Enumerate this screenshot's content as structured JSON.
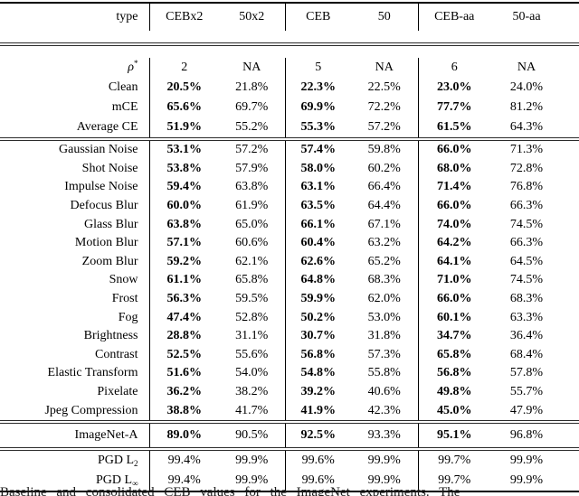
{
  "table": {
    "header": {
      "label": "type",
      "columns": [
        "CEBx2",
        "50x2",
        "CEB",
        "50",
        "CEB-aa",
        "50-aa"
      ]
    },
    "sections": [
      {
        "name": "summary",
        "rows": [
          {
            "label": "ρ",
            "label_sup": "*",
            "label_italic": true,
            "bold_ceb": false,
            "values": [
              "2",
              "NA",
              "5",
              "NA",
              "6",
              "NA"
            ]
          },
          {
            "label": "Clean",
            "bold_ceb": true,
            "values": [
              "20.5%",
              "21.8%",
              "22.3%",
              "22.5%",
              "23.0%",
              "24.0%"
            ]
          },
          {
            "label": "mCE",
            "bold_ceb": true,
            "values": [
              "65.6%",
              "69.7%",
              "69.9%",
              "72.2%",
              "77.7%",
              "81.2%"
            ]
          },
          {
            "label": "Average CE",
            "bold_ceb": true,
            "values": [
              "51.9%",
              "55.2%",
              "55.3%",
              "57.2%",
              "61.5%",
              "64.3%"
            ]
          }
        ]
      },
      {
        "name": "corruptions",
        "rows": [
          {
            "label": "Gaussian Noise",
            "bold_ceb": true,
            "values": [
              "53.1%",
              "57.2%",
              "57.4%",
              "59.8%",
              "66.0%",
              "71.3%"
            ]
          },
          {
            "label": "Shot Noise",
            "bold_ceb": true,
            "values": [
              "53.8%",
              "57.9%",
              "58.0%",
              "60.2%",
              "68.0%",
              "72.8%"
            ]
          },
          {
            "label": "Impulse Noise",
            "bold_ceb": true,
            "values": [
              "59.4%",
              "63.8%",
              "63.1%",
              "66.4%",
              "71.4%",
              "76.8%"
            ]
          },
          {
            "label": "Defocus Blur",
            "bold_ceb": true,
            "values": [
              "60.0%",
              "61.9%",
              "63.5%",
              "64.4%",
              "66.0%",
              "66.3%"
            ]
          },
          {
            "label": "Glass Blur",
            "bold_ceb": true,
            "values": [
              "63.8%",
              "65.0%",
              "66.1%",
              "67.1%",
              "74.0%",
              "74.5%"
            ]
          },
          {
            "label": "Motion Blur",
            "bold_ceb": true,
            "values": [
              "57.1%",
              "60.6%",
              "60.4%",
              "63.2%",
              "64.2%",
              "66.3%"
            ]
          },
          {
            "label": "Zoom Blur",
            "bold_ceb": true,
            "values": [
              "59.2%",
              "62.1%",
              "62.6%",
              "65.2%",
              "64.1%",
              "64.5%"
            ]
          },
          {
            "label": "Snow",
            "bold_ceb": true,
            "values": [
              "61.1%",
              "65.8%",
              "64.8%",
              "68.3%",
              "71.0%",
              "74.5%"
            ]
          },
          {
            "label": "Frost",
            "bold_ceb": true,
            "values": [
              "56.3%",
              "59.5%",
              "59.9%",
              "62.0%",
              "66.0%",
              "68.3%"
            ]
          },
          {
            "label": "Fog",
            "bold_ceb": true,
            "values": [
              "47.4%",
              "52.8%",
              "50.2%",
              "53.0%",
              "60.1%",
              "63.3%"
            ]
          },
          {
            "label": "Brightness",
            "bold_ceb": true,
            "values": [
              "28.8%",
              "31.1%",
              "30.7%",
              "31.8%",
              "34.7%",
              "36.4%"
            ]
          },
          {
            "label": "Contrast",
            "bold_ceb": true,
            "values": [
              "52.5%",
              "55.6%",
              "56.8%",
              "57.3%",
              "65.8%",
              "68.4%"
            ]
          },
          {
            "label": "Elastic Transform",
            "bold_ceb": true,
            "values": [
              "51.6%",
              "54.0%",
              "54.8%",
              "55.8%",
              "56.8%",
              "57.8%"
            ]
          },
          {
            "label": "Pixelate",
            "bold_ceb": true,
            "values": [
              "36.2%",
              "38.2%",
              "39.2%",
              "40.6%",
              "49.8%",
              "55.7%"
            ]
          },
          {
            "label": "Jpeg Compression",
            "bold_ceb": true,
            "values": [
              "38.8%",
              "41.7%",
              "41.9%",
              "42.3%",
              "45.0%",
              "47.9%"
            ]
          }
        ]
      },
      {
        "name": "imagenet-a",
        "rows": [
          {
            "label": "ImageNet-A",
            "bold_ceb": true,
            "values": [
              "89.0%",
              "90.5%",
              "92.5%",
              "93.3%",
              "95.1%",
              "96.8%"
            ]
          }
        ]
      },
      {
        "name": "pgd-attacks",
        "rows": [
          {
            "label": "PGD L",
            "label_sub": "2",
            "bold_ceb": false,
            "values": [
              "99.4%",
              "99.9%",
              "99.6%",
              "99.9%",
              "99.7%",
              "99.9%"
            ]
          },
          {
            "label": "PGD L",
            "label_sub": "∞",
            "bold_ceb": false,
            "values": [
              "99.4%",
              "99.9%",
              "99.6%",
              "99.9%",
              "99.7%",
              "99.9%"
            ]
          }
        ]
      }
    ]
  },
  "caption": {
    "fragment": "Baseline and consolidated CEB values for the ImageNet experiments. The"
  }
}
